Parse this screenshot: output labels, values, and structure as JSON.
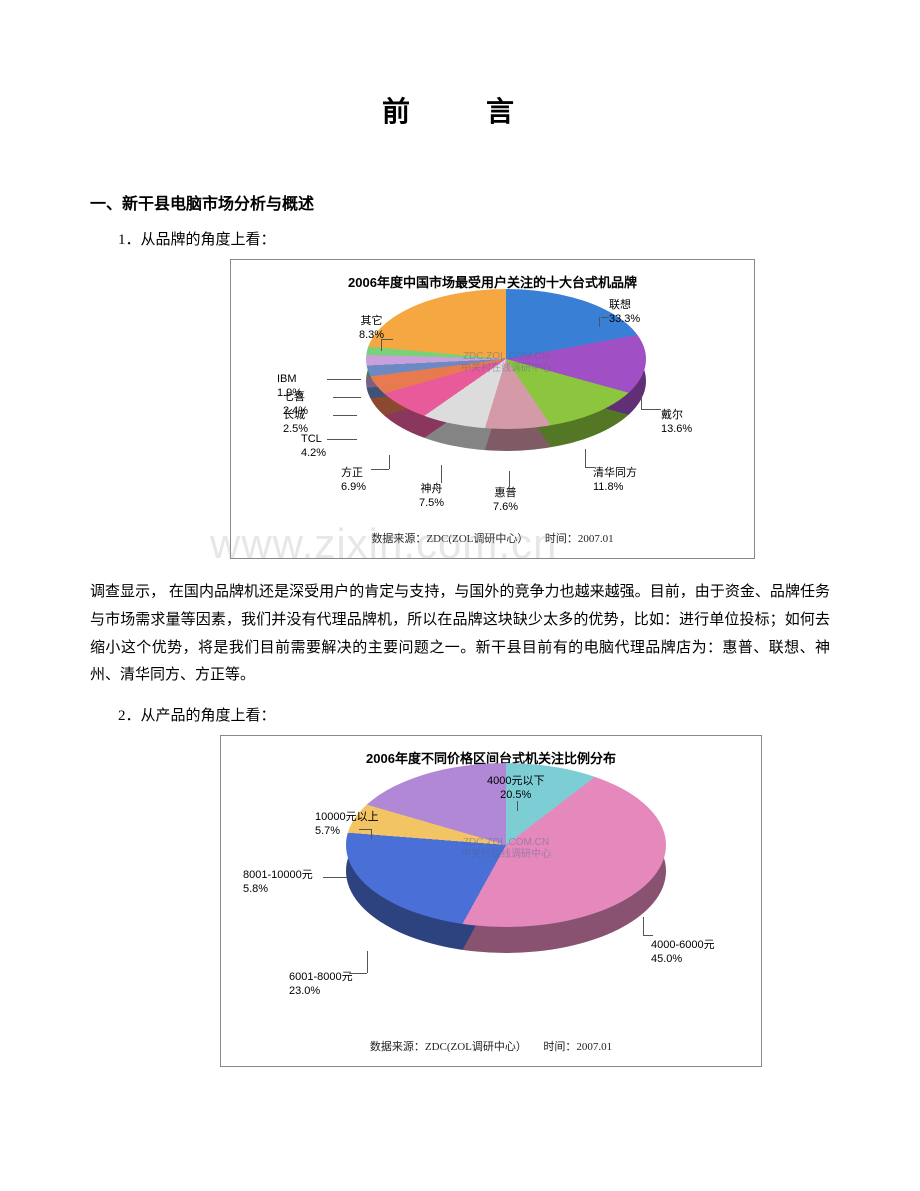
{
  "page_title": "前　言",
  "section1": {
    "heading": "一、新干县电脑市场分析与概述",
    "item1_label": "1．从品牌的角度上看：",
    "item2_label": "2．从产品的角度上看：",
    "paragraph": "调查显示， 在国内品牌机还是深受用户的肯定与支持，与国外的竞争力也越来越强。目前，由于资金、品牌任务与市场需求量等因素，我们并没有代理品牌机，所以在品牌这块缺少太多的优势，比如：进行单位投标；如何去缩小这个优势，将是我们目前需要解决的主要问题之一。新干县目前有的电脑代理品牌店为：惠普、联想、神州、清华同方、方正等。"
  },
  "chart1": {
    "type": "pie",
    "title": "2006年度中国市场最受用户关注的十大台式机品牌",
    "title_fontsize": 13,
    "background_color": "#ffffff",
    "border_color": "#888888",
    "footer_source": "数据来源：ZDC(ZOL调研中心）",
    "footer_time": "时间：2007.01",
    "center_mark_line1": "ZDC.ZOL.COM.CN",
    "center_mark_line2": "中关村在线调研中心",
    "slices": [
      {
        "label": "联想",
        "pct": "33.3%",
        "value": 33.3,
        "color": "#3a7fd6"
      },
      {
        "label": "戴尔",
        "pct": "13.6%",
        "value": 13.6,
        "color": "#a14fc4"
      },
      {
        "label": "清华同方",
        "pct": "11.8%",
        "value": 11.8,
        "color": "#8cc63f"
      },
      {
        "label": "惠普",
        "pct": "7.6%",
        "value": 7.6,
        "color": "#d49aa8"
      },
      {
        "label": "神舟",
        "pct": "7.5%",
        "value": 7.5,
        "color": "#dcdcdc"
      },
      {
        "label": "方正",
        "pct": "6.9%",
        "value": 6.9,
        "color": "#e85a9a"
      },
      {
        "label": "TCL",
        "pct": "4.2%",
        "value": 4.2,
        "color": "#e87a4f"
      },
      {
        "label": "长城",
        "pct": "2.5%",
        "value": 2.5,
        "color": "#6b8ac4"
      },
      {
        "label": "七喜",
        "pct": "2.4%",
        "value": 2.4,
        "color": "#c9a0dc"
      },
      {
        "label": "IBM",
        "pct": "1.9%",
        "value": 1.9,
        "color": "#79d279"
      },
      {
        "label": "其它",
        "pct": "8.3%",
        "value": 8.3,
        "color": "#f5a742"
      }
    ]
  },
  "chart2": {
    "type": "pie",
    "title": "2006年度不同价格区间台式机关注比例分布",
    "title_fontsize": 13,
    "background_color": "#ffffff",
    "border_color": "#888888",
    "footer_source": "数据来源：ZDC(ZOL调研中心）",
    "footer_time": "时间：2007.01",
    "center_mark_line1": "ZDC.ZOL.COM.CN",
    "center_mark_line2": "中关村在线调研中心",
    "slices": [
      {
        "label": "4000元以下",
        "pct": "20.5%",
        "value": 20.5,
        "color": "#7dcdd4"
      },
      {
        "label": "4000-6000元",
        "pct": "45.0%",
        "value": 45.0,
        "color": "#e589bd"
      },
      {
        "label": "6001-8000元",
        "pct": "23.0%",
        "value": 23.0,
        "color": "#4a6fd6"
      },
      {
        "label": "8001-10000元",
        "pct": "5.8%",
        "value": 5.8,
        "color": "#f2c464"
      },
      {
        "label": "10000元以上",
        "pct": "5.7%",
        "value": 5.7,
        "color": "#b088d6"
      }
    ]
  },
  "watermark": "www.zixin.com.cn"
}
